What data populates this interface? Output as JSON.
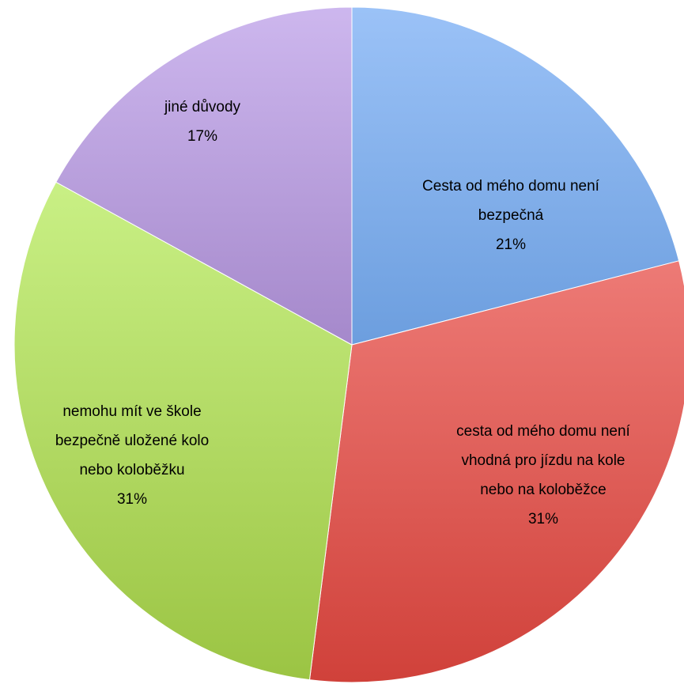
{
  "chart_data": {
    "type": "pie",
    "title": "",
    "slices": [
      {
        "label_lines": [
          "Cesta od mého domu není",
          "bezpečná"
        ],
        "percent_label": "21%",
        "value": 21,
        "color_light": "#9bc2f7",
        "color_dark": "#3d7ac6"
      },
      {
        "label_lines": [
          "cesta od mého domu není",
          "vhodná pro jízdu na kole",
          "nebo na koloběžce"
        ],
        "percent_label": "31%",
        "value": 31,
        "color_light": "#ff9d9a",
        "color_dark": "#d0413a"
      },
      {
        "label_lines": [
          "nemohu mít ve škole",
          "bezpečně uložené kolo",
          "nebo koloběžku"
        ],
        "percent_label": "31%",
        "value": 31,
        "color_light": "#d9ff9c",
        "color_dark": "#9bc443"
      },
      {
        "label_lines": [
          "jiné důvody"
        ],
        "percent_label": "17%",
        "value": 17,
        "color_light": "#cdb7ee",
        "color_dark": "#7d5aa8"
      }
    ]
  }
}
